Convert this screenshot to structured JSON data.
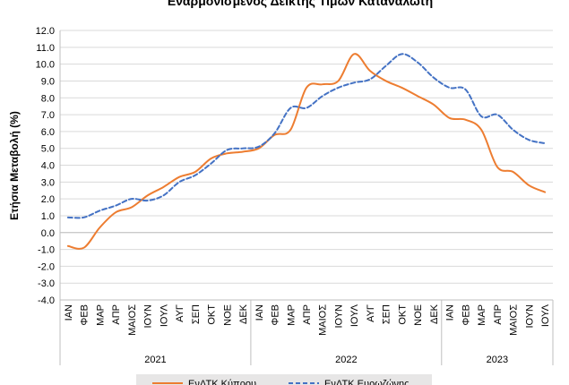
{
  "chart_data": {
    "type": "line",
    "title": "Εναρμονισμένος Δείκτης Τιμών Καταναλωτή",
    "ylabel": "Ετήσια Μεταβολή (%)",
    "xlabel": "",
    "ylim": [
      -4.0,
      12.0
    ],
    "ytick_step": 1.0,
    "grid": true,
    "legend_position": "bottom",
    "categories": [
      "ΙΑΝ",
      "ΦΕΒ",
      "ΜΑΡ",
      "ΑΠΡ",
      "ΜΑΙΟΣ",
      "ΙΟΥΝ",
      "ΙΟΥΛ",
      "ΑΥΓ",
      "ΣΕΠ",
      "ΟΚΤ",
      "ΝΟΕ",
      "ΔΕΚ",
      "ΙΑΝ",
      "ΦΕΒ",
      "ΜΑΡ",
      "ΑΠΡ",
      "ΜΑΙΟΣ",
      "ΙΟΥΝ",
      "ΙΟΥΛ",
      "ΑΥΓ",
      "ΣΕΠ",
      "ΟΚΤ",
      "ΝΟΕ",
      "ΔΕΚ",
      "ΙΑΝ",
      "ΦΕΒ",
      "ΜΑΡ",
      "ΑΠΡ",
      "ΜΑΙΟΣ",
      "ΙΟΥΝ",
      "ΙΟΥΛ"
    ],
    "year_groups": [
      {
        "label": "2021",
        "count": 12
      },
      {
        "label": "2022",
        "count": 12
      },
      {
        "label": "2023",
        "count": 7
      }
    ],
    "series": [
      {
        "name": "ΕνΔΤΚ Κύπρου",
        "color": "#ED7D31",
        "dash": "solid",
        "values": [
          -0.8,
          -0.9,
          0.3,
          1.2,
          1.5,
          2.2,
          2.7,
          3.3,
          3.6,
          4.4,
          4.7,
          4.8,
          5.0,
          5.8,
          6.1,
          8.6,
          8.8,
          9.0,
          10.6,
          9.6,
          9.0,
          8.6,
          8.1,
          7.6,
          6.8,
          6.7,
          6.1,
          3.9,
          3.6,
          2.8,
          2.4
        ]
      },
      {
        "name": "ΕνΔΤΚ Ευρωζώνης",
        "color": "#4472C4",
        "dash": "dashed",
        "values": [
          0.9,
          0.9,
          1.3,
          1.6,
          2.0,
          1.9,
          2.2,
          3.0,
          3.4,
          4.1,
          4.9,
          5.0,
          5.1,
          5.9,
          7.4,
          7.4,
          8.1,
          8.6,
          8.9,
          9.1,
          9.9,
          10.6,
          10.1,
          9.2,
          8.6,
          8.5,
          6.9,
          7.0,
          6.1,
          5.5,
          5.3
        ]
      }
    ]
  }
}
